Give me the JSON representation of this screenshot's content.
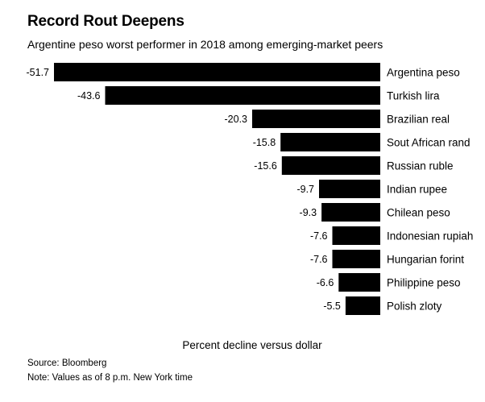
{
  "title": "Record Rout Deepens",
  "subtitle": "Argentine peso worst performer in 2018 among emerging-market peers",
  "footer": {
    "source": "Source: Bloomberg",
    "note": "Note: Values as of 8 p.m. New York time"
  },
  "chart_data": {
    "type": "bar",
    "orientation": "horizontal",
    "title": "Record Rout Deepens",
    "subtitle": "Argentine peso worst performer in 2018 among emerging-market peers",
    "xlabel": "Percent decline versus dollar",
    "ylabel": "",
    "categories": [
      "Argentina peso",
      "Turkish lira",
      "Brazilian real",
      "Sout African rand",
      "Russian ruble",
      "Indian rupee",
      "Chilean peso",
      "Indonesian rupiah",
      "Hungarian forint",
      "Philippine peso",
      "Polish zloty"
    ],
    "values": [
      -51.7,
      -43.6,
      -20.3,
      -15.8,
      -15.6,
      -9.7,
      -9.3,
      -7.6,
      -7.6,
      -6.6,
      -5.5
    ],
    "value_labels": [
      "-51.7",
      "-43.6",
      "-20.3",
      "-15.8",
      "-15.6",
      "-9.7",
      "-9.3",
      "-7.6",
      "-7.6",
      "-6.6",
      "-5.5"
    ],
    "xlim": [
      -51.7,
      0
    ],
    "bar_color": "#000000",
    "grid": false,
    "legend": "none"
  }
}
